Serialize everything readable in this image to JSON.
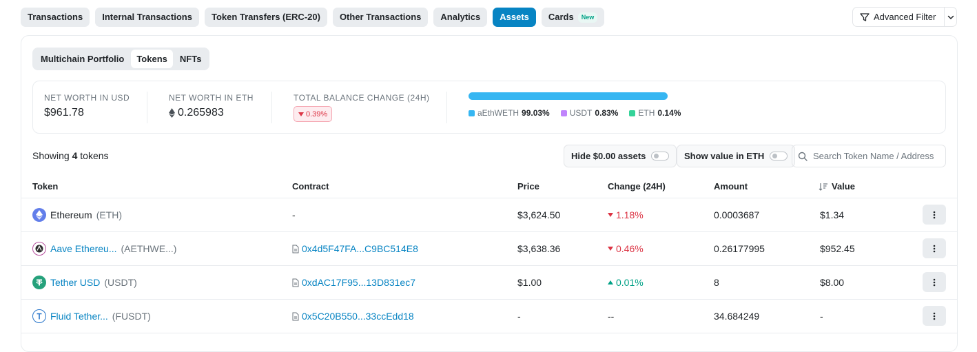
{
  "nav": {
    "tabs": [
      "Transactions",
      "Internal Transactions",
      "Token Transfers (ERC-20)",
      "Other Transactions",
      "Analytics",
      "Assets",
      "Cards"
    ],
    "new_badge": "New",
    "advanced_filter": "Advanced Filter"
  },
  "subtabs": [
    "Multichain Portfolio",
    "Tokens",
    "NFTs"
  ],
  "summary": {
    "usd_label": "NET WORTH IN USD",
    "usd_value": "$961.78",
    "eth_label": "NET WORTH IN ETH",
    "eth_value": "0.265983",
    "change_label": "TOTAL BALANCE CHANGE (24H)",
    "change_value": "0.39%",
    "legend": [
      {
        "name": "aEthWETH",
        "pct": "99.03%",
        "color": "#36b6f2"
      },
      {
        "name": "USDT",
        "pct": "0.83%",
        "color": "#c084fc"
      },
      {
        "name": "ETH",
        "pct": "0.14%",
        "color": "#34d399"
      }
    ]
  },
  "controls": {
    "showing_prefix": "Showing",
    "showing_count": "4",
    "showing_suffix": "tokens",
    "hide_zero": "Hide $0.00 assets",
    "show_eth": "Show value in ETH",
    "search_placeholder": "Search Token Name / Address"
  },
  "table": {
    "headers": [
      "Token",
      "Contract",
      "Price",
      "Change (24H)",
      "Amount",
      "Value"
    ],
    "rows": [
      {
        "name": "Ethereum",
        "symbol": "(ETH)",
        "contract": "-",
        "price": "$3,624.50",
        "change": "1.18%",
        "dir": "down",
        "amount": "0.0003687",
        "value": "$1.34",
        "icon": "eth-icon",
        "color": "#627eea"
      },
      {
        "name": "Aave Ethereu...",
        "symbol": "(AETHWE...)",
        "contract": "0x4d5F47FA...C9BC514E8",
        "price": "$3,638.36",
        "change": "0.46%",
        "dir": "down",
        "amount": "0.26177995",
        "value": "$952.45",
        "icon": "aave-icon",
        "color": "#b6509e"
      },
      {
        "name": "Tether USD",
        "symbol": "(USDT)",
        "contract": "0xdAC17F95...13D831ec7",
        "price": "$1.00",
        "change": "0.01%",
        "dir": "up",
        "amount": "8",
        "value": "$8.00",
        "icon": "tether-icon",
        "color": "#26a17b"
      },
      {
        "name": "Fluid Tether...",
        "symbol": "(FUSDT)",
        "contract": "0x5C20B550...33ccEdd18",
        "price": "-",
        "change": "--",
        "dir": "none",
        "amount": "34.684249",
        "value": "-",
        "icon": "fluid-icon",
        "color": "#2775ca"
      }
    ]
  }
}
